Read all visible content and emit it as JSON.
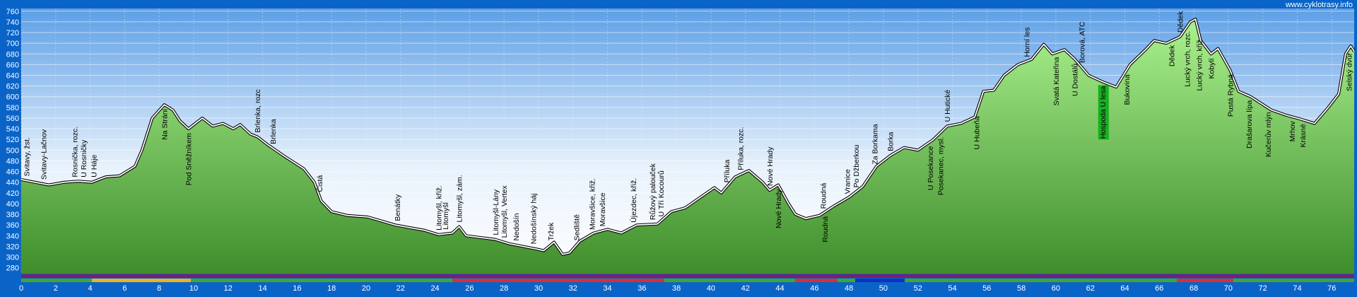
{
  "chart_data": {
    "type": "area",
    "title": "www.cyklotrasy.info",
    "xlim": [
      0,
      77.3
    ],
    "ylim": [
      269,
      765
    ],
    "xticks": [
      0,
      2,
      4,
      6,
      8,
      10,
      12,
      14,
      16,
      18,
      20,
      22,
      24,
      26,
      28,
      30,
      32,
      34,
      36,
      38,
      40,
      42,
      44,
      46,
      48,
      50,
      52,
      54,
      56,
      58,
      60,
      62,
      64,
      66,
      68,
      70,
      72,
      74,
      76
    ],
    "yticks": [
      280,
      300,
      320,
      340,
      360,
      380,
      400,
      420,
      440,
      460,
      480,
      500,
      520,
      540,
      560,
      580,
      600,
      620,
      640,
      660,
      680,
      700,
      720,
      740,
      760
    ],
    "grid": true,
    "color": "#5cb84a",
    "x": [
      0,
      0.8,
      1.6,
      2.5,
      3.3,
      4.1,
      4.9,
      5.7,
      6.6,
      7.0,
      7.6,
      8.3,
      8.8,
      9.2,
      9.7,
      10.5,
      11.1,
      11.7,
      12.3,
      12.7,
      13.3,
      13.7,
      14.3,
      15.2,
      16.4,
      17.0,
      17.4,
      18.0,
      18.9,
      20.1,
      21.7,
      23.4,
      24.2,
      25.0,
      25.4,
      25.8,
      27.5,
      28.3,
      29.9,
      30.3,
      30.9,
      31.4,
      31.8,
      32.4,
      33.2,
      34.0,
      34.8,
      35.7,
      36.9,
      37.7,
      38.5,
      39.3,
      40.2,
      40.6,
      41.4,
      42.2,
      43.0,
      43.4,
      43.9,
      44.5,
      44.9,
      45.5,
      46.3,
      47.1,
      48.0,
      48.8,
      49.6,
      50.4,
      51.2,
      52.0,
      52.9,
      53.7,
      54.5,
      55.3,
      55.8,
      56.4,
      57.0,
      57.8,
      58.6,
      59.3,
      59.8,
      60.5,
      61.1,
      61.9,
      62.7,
      63.5,
      64.3,
      65.2,
      65.7,
      66.4,
      67.2,
      67.8,
      68.1,
      68.4,
      69.0,
      69.4,
      70.1,
      70.6,
      71.3,
      72.5,
      73.4,
      74.2,
      75.0,
      75.8,
      76.4,
      76.8,
      77.1,
      77.3
    ],
    "values": [
      445,
      440,
      435,
      440,
      442,
      440,
      450,
      452,
      470,
      500,
      560,
      585,
      575,
      555,
      540,
      560,
      545,
      550,
      540,
      548,
      530,
      525,
      510,
      490,
      465,
      440,
      405,
      385,
      378,
      375,
      360,
      350,
      342,
      345,
      357,
      340,
      333,
      325,
      315,
      312,
      328,
      305,
      308,
      330,
      345,
      352,
      345,
      360,
      362,
      385,
      392,
      410,
      430,
      420,
      450,
      462,
      440,
      425,
      435,
      400,
      380,
      372,
      378,
      395,
      412,
      432,
      470,
      490,
      505,
      500,
      520,
      545,
      550,
      562,
      610,
      612,
      640,
      660,
      670,
      698,
      680,
      688,
      670,
      640,
      628,
      618,
      660,
      688,
      705,
      700,
      712,
      740,
      745,
      705,
      680,
      690,
      650,
      610,
      600,
      575,
      565,
      558,
      550,
      580,
      605,
      680,
      695,
      685
    ],
    "labels_above": [
      {
        "label": "Svitavy, žst.",
        "x": 0.3
      },
      {
        "label": "Svitavy-Lačnov",
        "x": 1.3
      },
      {
        "label": "Rosnička, rozc.",
        "x": 3.1
      },
      {
        "label": "U Rosničky",
        "x": 3.6
      },
      {
        "label": "U Háje",
        "x": 4.2
      },
      {
        "label": "Brlenka, rozc",
        "x": 13.7
      },
      {
        "label": "Brlenka",
        "x": 14.6
      },
      {
        "label": "Čistá",
        "x": 17.3
      },
      {
        "label": "Benátky",
        "x": 21.8
      },
      {
        "label": "Litomyšl, křiž.",
        "x": 24.2
      },
      {
        "label": "Litomyšl",
        "x": 24.6
      },
      {
        "label": "Litomyšl, zám.",
        "x": 25.4
      },
      {
        "label": "Litomyšl-Lány",
        "x": 27.5
      },
      {
        "label": "Litomyšl, Vertex",
        "x": 28.0
      },
      {
        "label": "Nedošín",
        "x": 28.7
      },
      {
        "label": "Nedošínský háj",
        "x": 29.7
      },
      {
        "label": "Tržek",
        "x": 30.7
      },
      {
        "label": "Sedliště",
        "x": 32.2
      },
      {
        "label": "Moravšice, křiž.",
        "x": 33.1
      },
      {
        "label": "Moravšice",
        "x": 33.7
      },
      {
        "label": "Újezdec, křiž.",
        "x": 35.5
      },
      {
        "label": "Růžový palouček",
        "x": 36.6
      },
      {
        "label": "U Tří Kocourů",
        "x": 37.1
      },
      {
        "label": "Příluka",
        "x": 40.9
      },
      {
        "label": "Příluka, rozc.",
        "x": 41.7
      },
      {
        "label": "Nové Hrady",
        "x": 43.4
      },
      {
        "label": "Roudná",
        "x": 46.5
      },
      {
        "label": "Vranice",
        "x": 47.9
      },
      {
        "label": "Po Džberkou",
        "x": 48.4
      },
      {
        "label": "Za Borkama",
        "x": 49.5
      },
      {
        "label": "Borka",
        "x": 50.4
      },
      {
        "label": "U Hutické",
        "x": 53.7
      },
      {
        "label": "Horní les",
        "x": 58.3
      },
      {
        "label": "Borová, ATC",
        "x": 61.5
      },
      {
        "label": "Dědek",
        "x": 67.2
      }
    ],
    "labels_below": [
      {
        "label": "Na Stráni",
        "x": 8.3
      },
      {
        "label": "Pod Sněžníkem",
        "x": 9.7
      },
      {
        "label": "Nové Hrady",
        "x": 43.9
      },
      {
        "label": "Roudná",
        "x": 46.6
      },
      {
        "label": "U Posekance",
        "x": 52.7
      },
      {
        "label": "Posekanec, mysl.",
        "x": 53.3
      },
      {
        "label": "U Hubeňa",
        "x": 55.4
      },
      {
        "label": "Svatá Kateřina",
        "x": 60.0
      },
      {
        "label": "U Dostálů",
        "x": 61.1
      },
      {
        "label": "Hospoda U lesa",
        "x": 62.7
      },
      {
        "label": "Bukovina",
        "x": 64.1
      },
      {
        "label": "Dědek",
        "x": 66.7
      },
      {
        "label": "Lucký vrch, rozc.",
        "x": 67.6
      },
      {
        "label": "Lucký vrch, křiž.",
        "x": 68.3
      },
      {
        "label": "Kobylí",
        "x": 69.0
      },
      {
        "label": "Pustá Rybná",
        "x": 70.1
      },
      {
        "label": "Drašarova lípa",
        "x": 71.2
      },
      {
        "label": "Kučerův mlýn",
        "x": 72.3
      },
      {
        "label": "Mrhov",
        "x": 73.7
      },
      {
        "label": "Krásné",
        "x": 74.3
      },
      {
        "label": "Selský dvůr",
        "x": 77.0
      }
    ]
  }
}
